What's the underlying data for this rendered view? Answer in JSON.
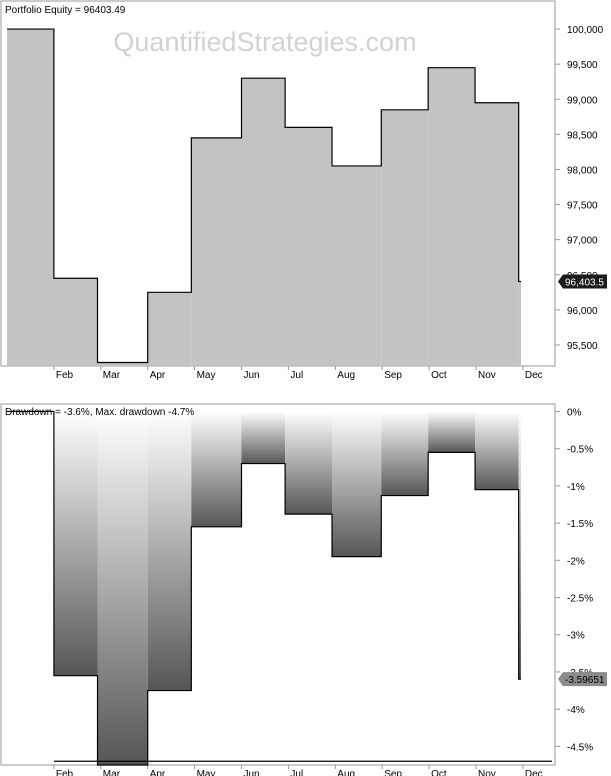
{
  "watermark": "QuantifiedStrategies.com",
  "colors": {
    "frame": "#9a9a9a",
    "equity_fill": "#c3c3c3",
    "line": "#000000",
    "drawdown_top": "#ffffff",
    "drawdown_bottom": "#565656",
    "watermark": "#d2d2d2",
    "last_value_bg": "#1b1b1b",
    "last_value_dd_bg": "#8c8c8c"
  },
  "chart_data": [
    {
      "type": "area",
      "title": "Portfolio Equity = 96403.49",
      "x_labels": [
        "Feb",
        "Mar",
        "Apr",
        "May",
        "Jun",
        "Jul",
        "Aug",
        "Sep",
        "Oct",
        "Nov",
        "Dec"
      ],
      "y_ticks": [
        {
          "value": 95500,
          "label": "95,500"
        },
        {
          "value": 96000,
          "label": "96,000"
        },
        {
          "value": 96500,
          "label": "96,500"
        },
        {
          "value": 97000,
          "label": "97,000"
        },
        {
          "value": 97500,
          "label": "97,500"
        },
        {
          "value": 98000,
          "label": "98,000"
        },
        {
          "value": 98500,
          "label": "98,500"
        },
        {
          "value": 99000,
          "label": "99,000"
        },
        {
          "value": 99500,
          "label": "99,500"
        },
        {
          "value": 100000,
          "label": "100,000"
        }
      ],
      "ylim": [
        95200,
        100400
      ],
      "steps": [
        {
          "x0": 0.0,
          "x1": 1.0,
          "value": 100000
        },
        {
          "x0": 1.0,
          "x1": 1.93,
          "value": 96450
        },
        {
          "x0": 1.93,
          "x1": 3.0,
          "value": 95250
        },
        {
          "x0": 3.0,
          "x1": 3.93,
          "value": 96250
        },
        {
          "x0": 3.93,
          "x1": 5.0,
          "value": 98450
        },
        {
          "x0": 5.0,
          "x1": 5.93,
          "value": 99300
        },
        {
          "x0": 5.93,
          "x1": 6.93,
          "value": 98600
        },
        {
          "x0": 6.93,
          "x1": 7.98,
          "value": 98050
        },
        {
          "x0": 7.98,
          "x1": 8.98,
          "value": 98850
        },
        {
          "x0": 8.98,
          "x1": 9.98,
          "value": 99450
        },
        {
          "x0": 9.98,
          "x1": 10.91,
          "value": 98950
        },
        {
          "x0": 10.91,
          "x1": 10.96,
          "value": 96403.49
        }
      ],
      "last_value": 96403.49,
      "last_value_label": "96,403.5"
    },
    {
      "type": "area",
      "title": "Drawdown = -3.6%, Max. drawdown -4.7%",
      "x_labels": [
        "Feb",
        "Mar",
        "Apr",
        "May",
        "Jun",
        "Jul",
        "Aug",
        "Sep",
        "Oct",
        "Nov",
        "Dec"
      ],
      "y_ticks": [
        {
          "value": 0,
          "label": "0%"
        },
        {
          "value": -0.5,
          "label": "-0.5%"
        },
        {
          "value": -1,
          "label": "-1%"
        },
        {
          "value": -1.5,
          "label": "-1.5%"
        },
        {
          "value": -2,
          "label": "-2%"
        },
        {
          "value": -2.5,
          "label": "-2.5%"
        },
        {
          "value": -3,
          "label": "-3%"
        },
        {
          "value": -3.5,
          "label": "-3.5%"
        },
        {
          "value": -4,
          "label": "-4%"
        },
        {
          "value": -4.5,
          "label": "-4.5%"
        }
      ],
      "ylim": [
        -4.75,
        0.1
      ],
      "steps": [
        {
          "x0": 0.0,
          "x1": 1.0,
          "value": 0
        },
        {
          "x0": 1.0,
          "x1": 1.93,
          "value": -3.55
        },
        {
          "x0": 1.93,
          "x1": 3.0,
          "value": -4.75
        },
        {
          "x0": 3.0,
          "x1": 3.93,
          "value": -3.75
        },
        {
          "x0": 3.93,
          "x1": 5.0,
          "value": -1.55
        },
        {
          "x0": 5.0,
          "x1": 5.93,
          "value": -0.7
        },
        {
          "x0": 5.93,
          "x1": 6.93,
          "value": -1.38
        },
        {
          "x0": 6.93,
          "x1": 7.98,
          "value": -1.95
        },
        {
          "x0": 7.98,
          "x1": 8.98,
          "value": -1.13
        },
        {
          "x0": 8.98,
          "x1": 9.98,
          "value": -0.55
        },
        {
          "x0": 9.98,
          "x1": 10.91,
          "value": -1.05
        },
        {
          "x0": 10.91,
          "x1": 10.96,
          "value": -3.59651
        }
      ],
      "max_drawdown_level": -4.7,
      "last_value": -3.59651,
      "last_value_label": "-3.59651"
    }
  ]
}
